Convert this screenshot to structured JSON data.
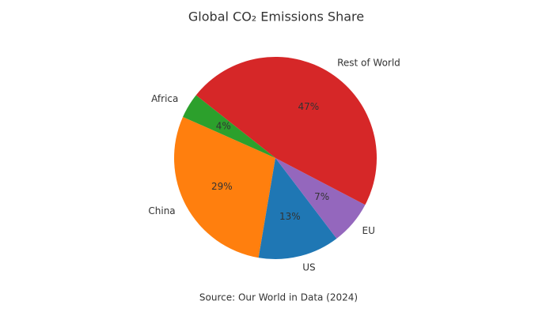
{
  "chart_data": {
    "type": "pie",
    "title": "Global CO₂ Emissions Share",
    "categories": [
      "China",
      "US",
      "EU",
      "Rest of World",
      "Africa"
    ],
    "values": [
      29,
      13,
      7,
      47,
      4
    ],
    "value_labels": [
      "29%",
      "13%",
      "7%",
      "47%",
      "4%"
    ],
    "colors": [
      "#ff7f0e",
      "#1f77b4",
      "#9467bd",
      "#d62728",
      "#2ca02c"
    ],
    "source": "Source: Our World in Data (2024)"
  }
}
